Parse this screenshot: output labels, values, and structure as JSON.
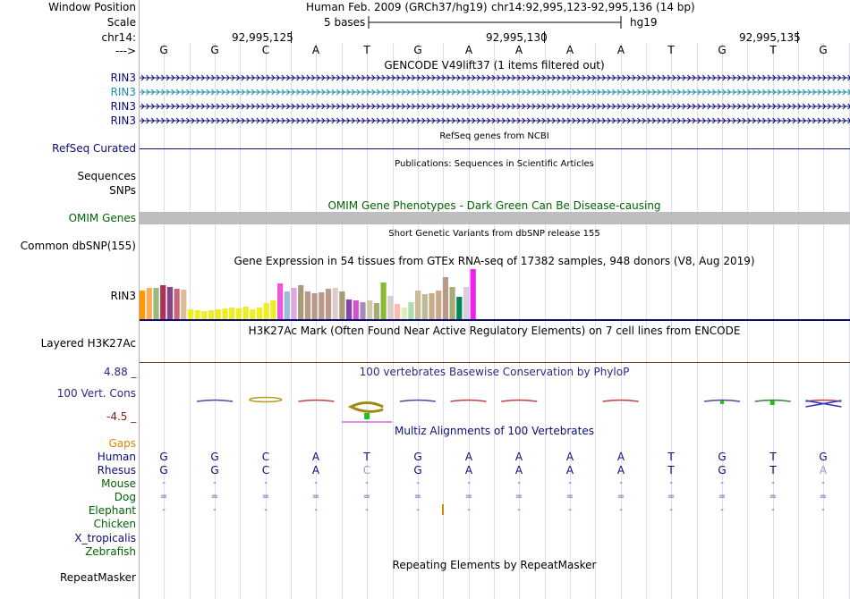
{
  "header": {
    "window_position_label": "Window Position",
    "scale_label": "Scale",
    "chrom_label": "chr14:",
    "strand_label": "--->",
    "assembly_text": "Human Feb. 2009 (GRCh37/hg19)",
    "position_text": "chr14:92,995,123-92,995,136 (14 bp)",
    "scale_text": "5 bases",
    "db_text": "hg19",
    "coords": [
      "92,995,125",
      "92,995,130",
      "92,995,135"
    ]
  },
  "bases": [
    "G",
    "G",
    "C",
    "A",
    "T",
    "G",
    "A",
    "A",
    "A",
    "A",
    "T",
    "G",
    "T",
    "G"
  ],
  "gencode": {
    "title": "GENCODE V49lift37 (1 items filtered out)",
    "tracks": [
      "RIN3",
      "RIN3",
      "RIN3",
      "RIN3"
    ],
    "colors": [
      "#0c0c78",
      "#1d8fa8",
      "#0c0c78",
      "#0c0c78"
    ]
  },
  "refseq": {
    "label": "RefSeq Curated",
    "title": "RefSeq genes from NCBI",
    "color": "#0c0c78"
  },
  "publications": {
    "title": "Publications: Sequences in Scientific Articles",
    "labels": [
      "Sequences",
      "SNPs"
    ]
  },
  "omim": {
    "label": "OMIM Genes",
    "title": "OMIM Gene Phenotypes - Dark Green Can Be Disease-causing",
    "color": "#006400"
  },
  "dbsnp": {
    "label": "Common dbSNP(155)",
    "title": "Short Genetic Variants from dbSNP release 155"
  },
  "gtex": {
    "title": "Gene Expression in 54 tissues from GTEx RNA-seq of 17382 samples, 948 donors (V8, Aug 2019)",
    "label": "RIN3"
  },
  "h3k27ac": {
    "label": "Layered H3K27Ac",
    "title": "H3K27Ac Mark (Often Found Near Active Regulatory Elements) on 7 cell lines from ENCODE"
  },
  "phylop": {
    "label": "100 Vert. Cons",
    "max_label": "4.88 _",
    "min_label": "-4.5 _",
    "title": "100 vertebrates Basewise Conservation by PhyloP",
    "color": "#2a2a8a",
    "max_color": "#2a2a8a",
    "min_color": "#8a1a1a"
  },
  "multiz": {
    "title": "Multiz Alignments of 100 Vertebrates",
    "gaps_label": "Gaps",
    "gaps_color": "#d28c00",
    "species": [
      {
        "name": "Human",
        "color": "#0c0c78",
        "row": [
          "G",
          "G",
          "C",
          "A",
          "T",
          "G",
          "A",
          "A",
          "A",
          "A",
          "T",
          "G",
          "T",
          "G"
        ]
      },
      {
        "name": "Rhesus",
        "color": "#0c0c78",
        "row": [
          "G",
          "G",
          "C",
          "A",
          "C",
          "G",
          "A",
          "A",
          "A",
          "A",
          "T",
          "G",
          "T",
          "A"
        ]
      },
      {
        "name": "Mouse",
        "color": "#006400",
        "row": [
          "-",
          "-",
          "-",
          "-",
          "-",
          "-",
          "-",
          "-",
          "-",
          "-",
          "-",
          "-",
          "-",
          "-"
        ]
      },
      {
        "name": "Dog",
        "color": "#006400",
        "row": [
          "=",
          "=",
          "=",
          "=",
          "=",
          "=",
          "=",
          "=",
          "=",
          "=",
          "=",
          "=",
          "=",
          "="
        ]
      },
      {
        "name": "Elephant",
        "color": "#006400",
        "row": [
          "-",
          "-",
          "-",
          "-",
          "-",
          "-",
          "-",
          "-",
          "-",
          "-",
          "-",
          "-",
          "-",
          "-"
        ]
      },
      {
        "name": "Chicken",
        "color": "#006400",
        "row": []
      },
      {
        "name": "X_tropicalis",
        "color": "#0c0c78",
        "row": []
      },
      {
        "name": "Zebrafish",
        "color": "#006400",
        "row": []
      }
    ]
  },
  "repeatmasker": {
    "label": "RepeatMasker",
    "title": "Repeating Elements by RepeatMasker"
  }
}
